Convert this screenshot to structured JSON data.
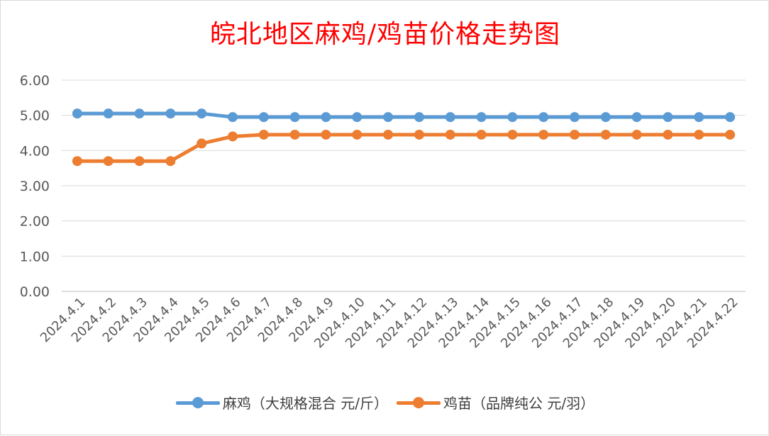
{
  "chart_data": {
    "type": "line",
    "title": "皖北地区麻鸡/鸡苗价格走势图",
    "categories": [
      "2024.4.1",
      "2024.4.2",
      "2024.4.3",
      "2024.4.4",
      "2024.4.5",
      "2024.4.6",
      "2024.4.7",
      "2024.4.8",
      "2024.4.9",
      "2024.4.10",
      "2024.4.11",
      "2024.4.12",
      "2024.4.13",
      "2024.4.14",
      "2024.4.15",
      "2024.4.16",
      "2024.4.17",
      "2024.4.18",
      "2024.4.19",
      "2024.4.20",
      "2024.4.21",
      "2024.4.22"
    ],
    "series": [
      {
        "name": "麻鸡（大规格混合 元/斤）",
        "color": "#5b9bd5",
        "values": [
          5.05,
          5.05,
          5.05,
          5.05,
          5.05,
          4.95,
          4.95,
          4.95,
          4.95,
          4.95,
          4.95,
          4.95,
          4.95,
          4.95,
          4.95,
          4.95,
          4.95,
          4.95,
          4.95,
          4.95,
          4.95,
          4.95
        ]
      },
      {
        "name": "鸡苗（品牌纯公 元/羽）",
        "color": "#ed7d31",
        "values": [
          3.7,
          3.7,
          3.7,
          3.7,
          4.2,
          4.4,
          4.45,
          4.45,
          4.45,
          4.45,
          4.45,
          4.45,
          4.45,
          4.45,
          4.45,
          4.45,
          4.45,
          4.45,
          4.45,
          4.45,
          4.45,
          4.45
        ]
      }
    ],
    "xlabel": "",
    "ylabel": "",
    "ylim": [
      0,
      6
    ],
    "yticks": [
      "0.00",
      "1.00",
      "2.00",
      "3.00",
      "4.00",
      "5.00",
      "6.00"
    ],
    "grid": true,
    "legend_position": "bottom"
  }
}
